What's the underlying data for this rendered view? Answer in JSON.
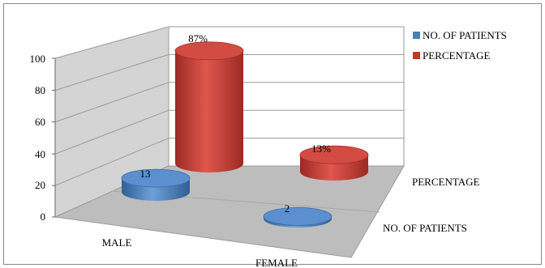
{
  "chart_data": {
    "type": "bar",
    "style": "3d-cylinder",
    "categories": [
      "MALE",
      "FEMALE"
    ],
    "series": [
      {
        "name": "NO. OF PATIENTS",
        "values": [
          13,
          2
        ],
        "labels": [
          "13",
          "2"
        ],
        "color": "#4a7ebb"
      },
      {
        "name": "PERCENTAGE",
        "values": [
          87,
          13
        ],
        "labels": [
          "87%",
          "13%"
        ],
        "color": "#c0392b"
      }
    ],
    "yticks": [
      "0",
      "20",
      "40",
      "60",
      "80",
      "100"
    ],
    "ylim": [
      0,
      100
    ],
    "grid": true,
    "legend": "top-right"
  }
}
